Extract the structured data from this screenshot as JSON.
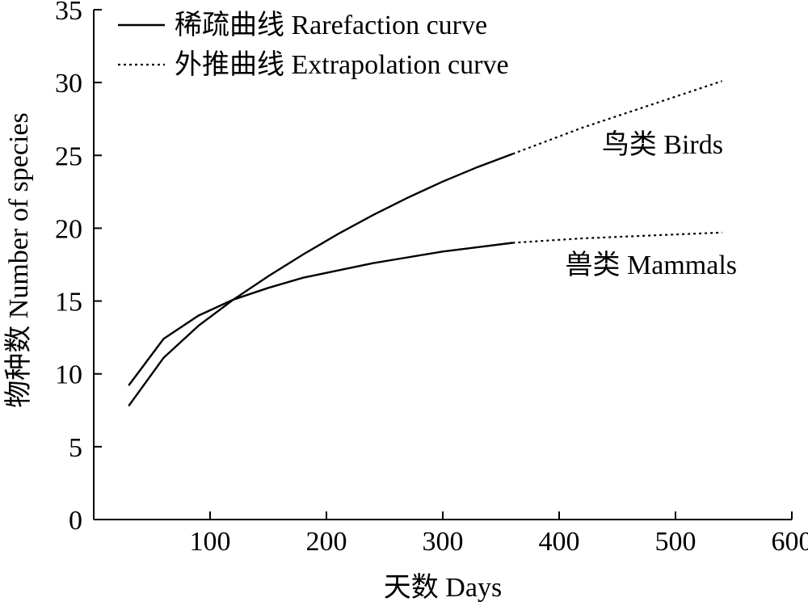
{
  "chart_data": {
    "type": "line",
    "title": "",
    "xlabel": "天数 Days",
    "ylabel": "物种数 Number of species",
    "xlim": [
      0,
      600
    ],
    "ylim": [
      0,
      35
    ],
    "xticks": [
      100,
      200,
      300,
      400,
      500,
      600
    ],
    "yticks": [
      0,
      5,
      10,
      15,
      20,
      25,
      30,
      35
    ],
    "grid": false,
    "legend": {
      "position": "top-left",
      "entries": [
        {
          "label": "稀疏曲线 Rarefaction curve",
          "style": "solid"
        },
        {
          "label": "外推曲线 Extrapolation curve",
          "style": "dotted"
        }
      ]
    },
    "series": [
      {
        "name": "鸟类 Birds",
        "rarefaction": {
          "x": [
            30,
            60,
            90,
            120,
            150,
            180,
            210,
            240,
            270,
            300,
            330,
            360
          ],
          "y": [
            7.8,
            11.1,
            13.3,
            15.1,
            16.7,
            18.2,
            19.6,
            20.9,
            22.1,
            23.2,
            24.2,
            25.1
          ]
        },
        "extrapolation": {
          "x": [
            360,
            390,
            420,
            450,
            480,
            510,
            540
          ],
          "y": [
            25.1,
            26.0,
            26.9,
            27.7,
            28.5,
            29.3,
            30.1
          ]
        }
      },
      {
        "name": "兽类 Mammals",
        "rarefaction": {
          "x": [
            30,
            60,
            90,
            120,
            150,
            180,
            210,
            240,
            270,
            300,
            330,
            360
          ],
          "y": [
            9.2,
            12.4,
            14.0,
            15.1,
            15.9,
            16.6,
            17.1,
            17.6,
            18.0,
            18.4,
            18.7,
            19.0
          ]
        },
        "extrapolation": {
          "x": [
            360,
            420,
            480,
            540
          ],
          "y": [
            19.0,
            19.3,
            19.5,
            19.7
          ]
        }
      }
    ]
  }
}
